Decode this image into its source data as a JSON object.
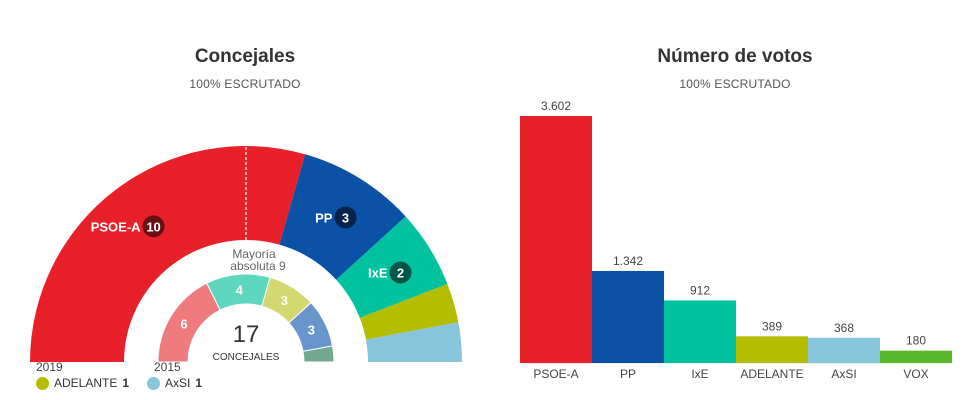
{
  "left": {
    "title": "Concejales",
    "subtitle": "100% ESCRUTADO",
    "majority_label_line1": "Mayoría",
    "majority_label_line2": "absoluta 9",
    "total_seats": "17",
    "total_label": "CONCEJALES",
    "year_outer": "2019",
    "year_inner": "2015",
    "legend": [
      {
        "name": "ADELANTE",
        "seats": "1",
        "color": "#b5bd00"
      },
      {
        "name": "AxSI",
        "seats": "1",
        "color": "#86c5da"
      }
    ]
  },
  "right": {
    "title": "Número de votos",
    "subtitle": "100% ESCRUTADO"
  },
  "chart_data": [
    {
      "type": "pie",
      "variant": "hemicycle",
      "title": "Concejales",
      "year": "2019",
      "total": 17,
      "majority": 9,
      "series": [
        {
          "name": "PSOE-A",
          "label": "PSOE-A",
          "value": 10,
          "color": "#e8202a",
          "show_label": true
        },
        {
          "name": "PP",
          "label": "PP",
          "value": 3,
          "color": "#0b51a6",
          "show_label": true
        },
        {
          "name": "IxE",
          "label": "IxE",
          "value": 2,
          "color": "#00c29e",
          "show_label": true
        },
        {
          "name": "ADELANTE",
          "label": "ADELANTE",
          "value": 1,
          "color": "#b5bd00",
          "show_label": false
        },
        {
          "name": "AxSI",
          "label": "AxSI",
          "value": 1,
          "color": "#86c5da",
          "show_label": false
        }
      ]
    },
    {
      "type": "pie",
      "variant": "hemicycle",
      "year": "2015",
      "total": 17,
      "series": [
        {
          "value": 6,
          "color": "#f07b7f",
          "label": "6",
          "show_label": true
        },
        {
          "value": 4,
          "color": "#5fd6c0",
          "label": "4",
          "show_label": true
        },
        {
          "value": 3,
          "color": "#d4d870",
          "label": "3",
          "show_label": true
        },
        {
          "value": 3,
          "color": "#6a95cc",
          "label": "3",
          "show_label": true
        },
        {
          "value": 1,
          "color": "#72a98e",
          "label": "",
          "show_label": false
        }
      ]
    },
    {
      "type": "bar",
      "title": "Número de votos",
      "categories": [
        "PSOE-A",
        "PP",
        "IxE",
        "ADELANTE",
        "AxSI",
        "VOX"
      ],
      "values": [
        3602,
        1342,
        912,
        389,
        368,
        180
      ],
      "value_labels": [
        "3.602",
        "1.342",
        "912",
        "389",
        "368",
        "180"
      ],
      "colors": [
        "#e8202a",
        "#0b51a6",
        "#00c29e",
        "#b5bd00",
        "#86c5da",
        "#5cb82d"
      ],
      "ylim": [
        0,
        3602
      ]
    }
  ]
}
